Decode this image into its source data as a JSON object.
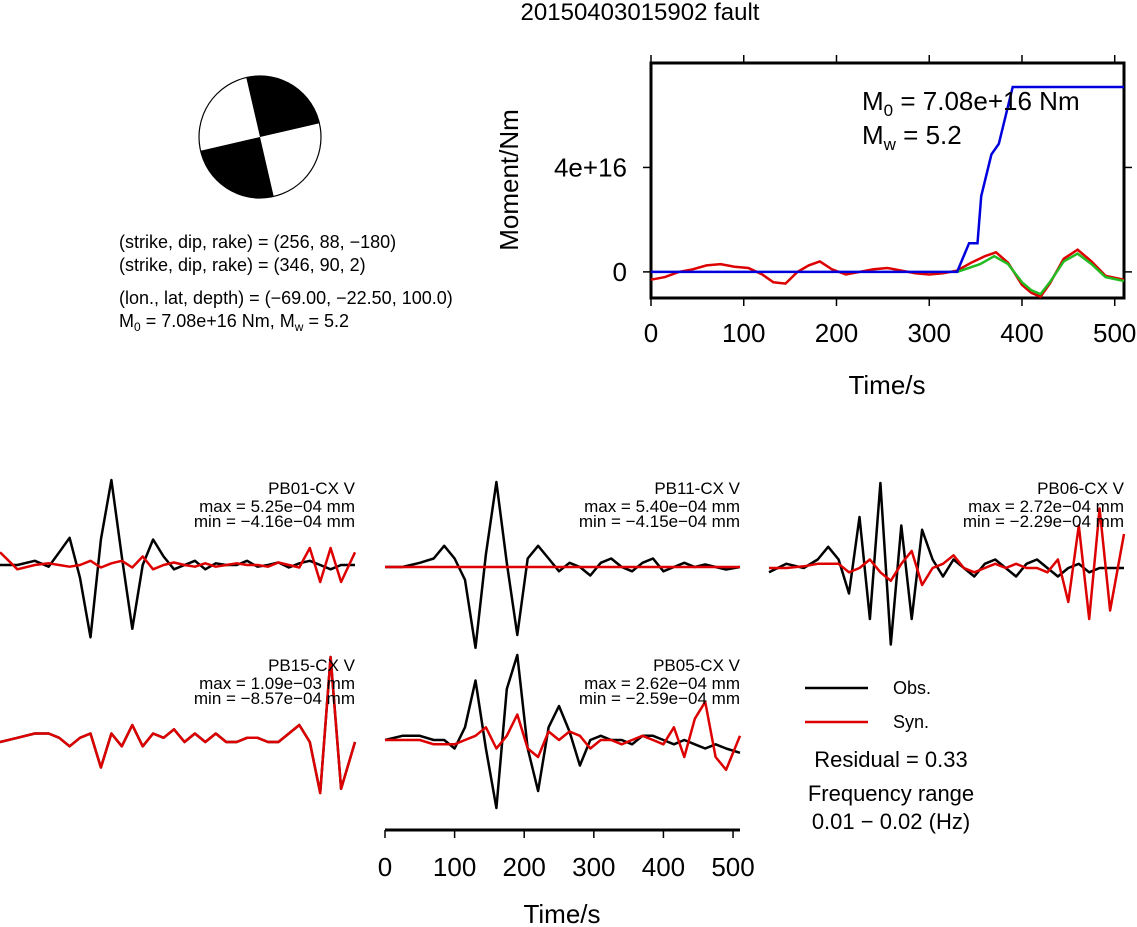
{
  "title": "20150403015902 fault",
  "mechanism": {
    "line1": "(strike, dip, rake) = (256, 88, −180)",
    "line2": "(strike, dip, rake) = (346, 90, 2)",
    "line3": "(lon., lat, depth) = (−69.00, −22.50, 100.0)",
    "m0_prefix": "M",
    "m0_sub": "0",
    "m0_rest": " = 7.08e+16 Nm, M",
    "mw_sub": "w",
    "mw_rest": " = 5.2"
  },
  "chart_data": [
    {
      "type": "line",
      "name": "moment-function",
      "ylabel": "Moment/Nm",
      "xlabel": "Time/s",
      "xlim": [
        0,
        510
      ],
      "ylim": [
        -1e+16,
        8e+16
      ],
      "xticks": [
        0,
        100,
        200,
        300,
        400,
        500
      ],
      "yticks": [
        {
          "value": 0,
          "label": "0"
        },
        {
          "value": 4e+16,
          "label": "4e+16"
        }
      ],
      "annotation": {
        "m0_prefix": "M",
        "m0_sub": "0",
        "m0_rest": " = 7.08e+16 Nm",
        "mw_prefix": "M",
        "mw_sub": "w",
        "mw_rest": " = 5.2"
      },
      "series": [
        {
          "name": "",
          "color": "#0000dd",
          "x": [
            0,
            330,
            343,
            352,
            356,
            367,
            375,
            390,
            510
          ],
          "y": [
            0,
            0,
            1.1e+16,
            1.1e+16,
            2.9e+16,
            4.5e+16,
            4.9e+16,
            7.08e+16,
            7.08e+16
          ]
        },
        {
          "name": "",
          "color": "#22bb22",
          "x": [
            330,
            355,
            370,
            385,
            400,
            410,
            420,
            430,
            445,
            460,
            475,
            490,
            510
          ],
          "y": [
            0,
            3000000000000000.0,
            6000000000000000.0,
            3000000000000000.0,
            -4000000000000000.0,
            -7000000000000000.0,
            -8500000000000000.0,
            -4000000000000000.0,
            4000000000000000.0,
            7000000000000000.0,
            3000000000000000.0,
            -2000000000000000.0,
            -3500000000000000.0
          ]
        },
        {
          "name": "",
          "color": "#dd0000",
          "x": [
            0,
            15,
            30,
            45,
            60,
            75,
            90,
            105,
            120,
            132,
            145,
            158,
            170,
            182,
            195,
            210,
            225,
            240,
            255,
            270,
            285,
            300,
            315,
            330,
            345,
            360,
            372,
            385,
            400,
            410,
            420,
            430,
            445,
            460,
            475,
            490,
            510
          ],
          "y": [
            -3000000000000000.0,
            -2000000000000000.0,
            0,
            1000000000000000.0,
            2500000000000000.0,
            3000000000000000.0,
            2000000000000000.0,
            1500000000000000.0,
            -1000000000000000.0,
            -4000000000000000.0,
            -4500000000000000.0,
            0,
            2500000000000000.0,
            4000000000000000.0,
            1000000000000000.0,
            -1000000000000000.0,
            0,
            1000000000000000.0,
            1500000000000000.0,
            500000000000000.0,
            -500000000000000.0,
            -1000000000000000.0,
            -500000000000000.0,
            500000000000000.0,
            3500000000000000.0,
            6000000000000000.0,
            7500000000000000.0,
            3500000000000000.0,
            -5000000000000000.0,
            -8000000000000000.0,
            -9500000000000000.0,
            -4500000000000000.0,
            5000000000000000.0,
            8500000000000000.0,
            4000000000000000.0,
            -1500000000000000.0,
            -3000000000000000.0
          ]
        }
      ]
    },
    {
      "type": "line",
      "name": "waveforms",
      "xlabel": "Time/s",
      "xlim": [
        0,
        510
      ],
      "xticks": [
        0,
        100,
        200,
        300,
        400,
        500
      ],
      "x": [
        0,
        25,
        50,
        70,
        85,
        100,
        115,
        130,
        145,
        160,
        175,
        190,
        205,
        220,
        235,
        250,
        265,
        280,
        295,
        310,
        325,
        340,
        355,
        370,
        385,
        400,
        415,
        430,
        445,
        460,
        475,
        490,
        510
      ],
      "stations": [
        {
          "name": "PB01-CX V",
          "max": "max = 5.25e−04 mm",
          "min": "min = −4.16e−04 mm",
          "obs": [
            0,
            0,
            0.05,
            -0.02,
            0.15,
            0.32,
            -0.15,
            -0.85,
            0.3,
            1.0,
            0.1,
            -0.75,
            0,
            0.3,
            0.1,
            -0.05,
            0,
            0.05,
            -0.05,
            0.02,
            0,
            0,
            0.05,
            -0.02,
            0,
            0.03,
            -0.03,
            0.02,
            0.05,
            0,
            -0.05,
            0,
            0
          ],
          "syn": [
            0.15,
            -0.05,
            0,
            0.02,
            0,
            -0.02,
            0,
            0.05,
            -0.03,
            0.02,
            0.05,
            -0.03,
            0.1,
            -0.05,
            0,
            0.03,
            0,
            -0.02,
            0.02,
            -0.02,
            0,
            0.02,
            0,
            0,
            -0.02,
            0.03,
            0,
            -0.03,
            0.2,
            -0.2,
            0.2,
            -0.2,
            0.15
          ]
        },
        {
          "name": "PB11-CX V",
          "max": "max = 5.40e−04 mm",
          "min": "min = −4.15e−04 mm",
          "obs": [
            0,
            0,
            0.05,
            0.1,
            0.25,
            0.1,
            -0.15,
            -0.95,
            0.15,
            1.0,
            0.05,
            -0.8,
            0.1,
            0.25,
            0.1,
            -0.05,
            0.05,
            0,
            -0.1,
            0.05,
            0.1,
            0,
            -0.05,
            0.05,
            0.1,
            -0.05,
            0,
            0.05,
            0,
            0.03,
            0,
            -0.03,
            0
          ],
          "syn": [
            0,
            0,
            0,
            0,
            0,
            0,
            0,
            0,
            0,
            0,
            0,
            0,
            0,
            0,
            0,
            0,
            0,
            0,
            0,
            0,
            0,
            0,
            0,
            0,
            0,
            0,
            0,
            0,
            0,
            0,
            0,
            0,
            0
          ]
        },
        {
          "name": "PB06-CX V",
          "max": "max = 2.72e−04 mm",
          "min": "min = −2.29e−04 mm",
          "obs": [
            -0.05,
            0.05,
            0,
            0.1,
            0.25,
            0.1,
            -0.3,
            0.6,
            -0.6,
            1.0,
            -0.9,
            0.5,
            -0.6,
            0.45,
            0.1,
            -0.1,
            0.1,
            0,
            -0.1,
            0.05,
            0.1,
            0,
            -0.1,
            0.05,
            0.1,
            0,
            -0.1,
            0,
            0.05,
            -0.05,
            0,
            0,
            0
          ],
          "syn": [
            0,
            0,
            0.02,
            0.05,
            0.05,
            0.05,
            -0.05,
            0,
            0.1,
            -0.05,
            -0.15,
            0.05,
            0.2,
            -0.2,
            0,
            0.05,
            0.15,
            0,
            -0.05,
            0,
            0.05,
            0,
            0.05,
            0,
            0,
            -0.05,
            0.1,
            -0.4,
            0.5,
            -0.6,
            0.7,
            -0.5,
            0.4
          ]
        },
        {
          "name": "PB15-CX V",
          "max": "max = 1.09e−03 mm",
          "min": "min = −8.57e−04 mm",
          "obs": [
            0,
            0.05,
            0.1,
            0.1,
            0.05,
            -0.05,
            0.05,
            0.1,
            -0.3,
            0.1,
            -0.05,
            0.2,
            -0.05,
            0.1,
            0.05,
            0.15,
            0,
            0.1,
            0,
            0.1,
            0,
            0,
            0.05,
            0.05,
            0,
            0,
            0.1,
            0.2,
            0,
            -0.6,
            1.0,
            -0.55,
            0
          ],
          "syn": [
            0,
            0.05,
            0.1,
            0.1,
            0.05,
            -0.05,
            0.05,
            0.1,
            -0.3,
            0.1,
            -0.05,
            0.2,
            -0.05,
            0.1,
            0.05,
            0.15,
            0,
            0.1,
            0,
            0.1,
            0,
            0,
            0.05,
            0.05,
            0,
            0,
            0.1,
            0.2,
            0,
            -0.6,
            1.0,
            -0.55,
            0
          ]
        },
        {
          "name": "PB05-CX V",
          "max": "max = 2.62e−04 mm",
          "min": "min = −2.59e−04 mm",
          "obs": [
            0,
            0.05,
            0.05,
            0,
            0,
            -0.1,
            0.15,
            0.7,
            -0.1,
            -0.8,
            0.6,
            1.0,
            -0.1,
            -0.6,
            0.15,
            0.4,
            0.1,
            -0.3,
            0,
            0.05,
            0,
            0,
            -0.05,
            0.05,
            0.05,
            0,
            -0.05,
            0,
            -0.05,
            -0.1,
            -0.05,
            -0.1,
            -0.15
          ],
          "syn": [
            0,
            0,
            0,
            -0.05,
            -0.05,
            -0.05,
            0,
            0.05,
            0.15,
            -0.1,
            0.05,
            0.3,
            -0.1,
            -0.2,
            0.1,
            0,
            0.1,
            0.05,
            -0.1,
            0,
            0,
            -0.05,
            0,
            0.05,
            0,
            -0.05,
            0.15,
            -0.2,
            0.25,
            0.45,
            -0.2,
            -0.35,
            0.05
          ]
        }
      ]
    }
  ],
  "legend": {
    "obs": "Obs.",
    "syn": "Syn.",
    "obs_color": "#000000",
    "syn_color": "#dd0000"
  },
  "residual": "Residual = 0.33",
  "freq_label": "Frequency range",
  "freq_value": "0.01 − 0.02 (Hz)"
}
